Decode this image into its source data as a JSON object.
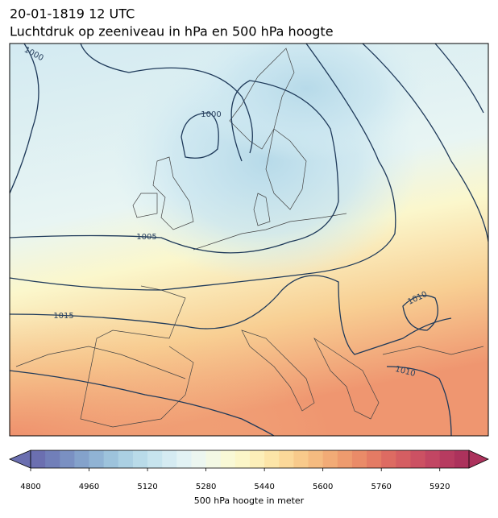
{
  "header": {
    "title": "20-01-1819 12 UTC",
    "subtitle": "Luchtdruk op zeeniveau in hPa en 500 hPa hoogte"
  },
  "contour_labels": [
    1000,
    1000,
    1005,
    1015,
    1010,
    1010
  ],
  "colorbar": {
    "label": "500 hPa hoogte in meter",
    "range": [
      4800,
      6000
    ],
    "ticks": [
      4800,
      4960,
      5120,
      5280,
      5440,
      5600,
      5760,
      5920
    ],
    "colors": [
      "#6b6fb0",
      "#717fb9",
      "#7a90c2",
      "#84a2cb",
      "#90b3d4",
      "#9dc3dc",
      "#abd0e3",
      "#b9dbe9",
      "#c7e4ee",
      "#d5ebf2",
      "#e2f2f4",
      "#ecf6f0",
      "#f3f8e4",
      "#f9f9d6",
      "#fbf6c8",
      "#fcefb9",
      "#fce5a8",
      "#fbd899",
      "#f8ca8b",
      "#f5bb80",
      "#f2ab76",
      "#ee9b6e",
      "#ea8b68",
      "#e47b64",
      "#dd6b62",
      "#d55e62",
      "#cc5163",
      "#c24663",
      "#b73b60",
      "#ac325c"
    ]
  }
}
